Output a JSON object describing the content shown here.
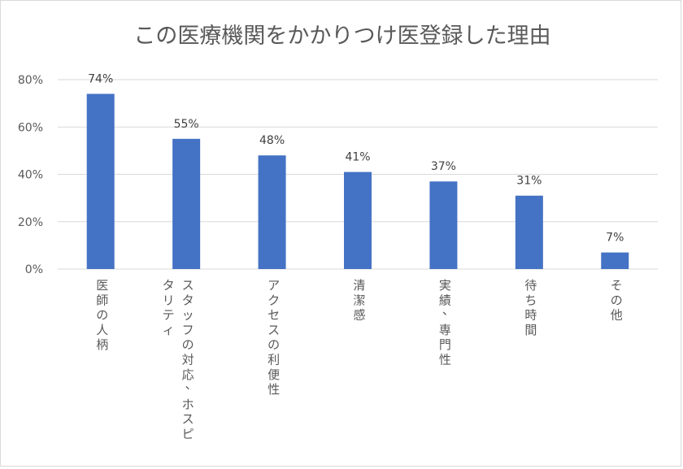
{
  "chart_data": {
    "type": "bar",
    "title": "この医療機関をかかりつけ医登録した理由",
    "categories": [
      [
        "医師の人柄"
      ],
      [
        "スタッフの対応、ホスピ",
        "タリティ"
      ],
      [
        "アクセスの利便性"
      ],
      [
        "清潔感"
      ],
      [
        "実績、専門性"
      ],
      [
        "待ち時間"
      ],
      [
        "その他"
      ]
    ],
    "values": [
      74,
      55,
      48,
      41,
      37,
      31,
      7
    ],
    "value_labels": [
      "74%",
      "55%",
      "48%",
      "41%",
      "37%",
      "31%",
      "7%"
    ],
    "yticks": [
      0,
      20,
      40,
      60,
      80
    ],
    "ytick_labels": [
      "0%",
      "20%",
      "40%",
      "60%",
      "80%"
    ],
    "ylim": [
      0,
      80
    ],
    "grid": true,
    "bar_color": "#4472c4"
  }
}
